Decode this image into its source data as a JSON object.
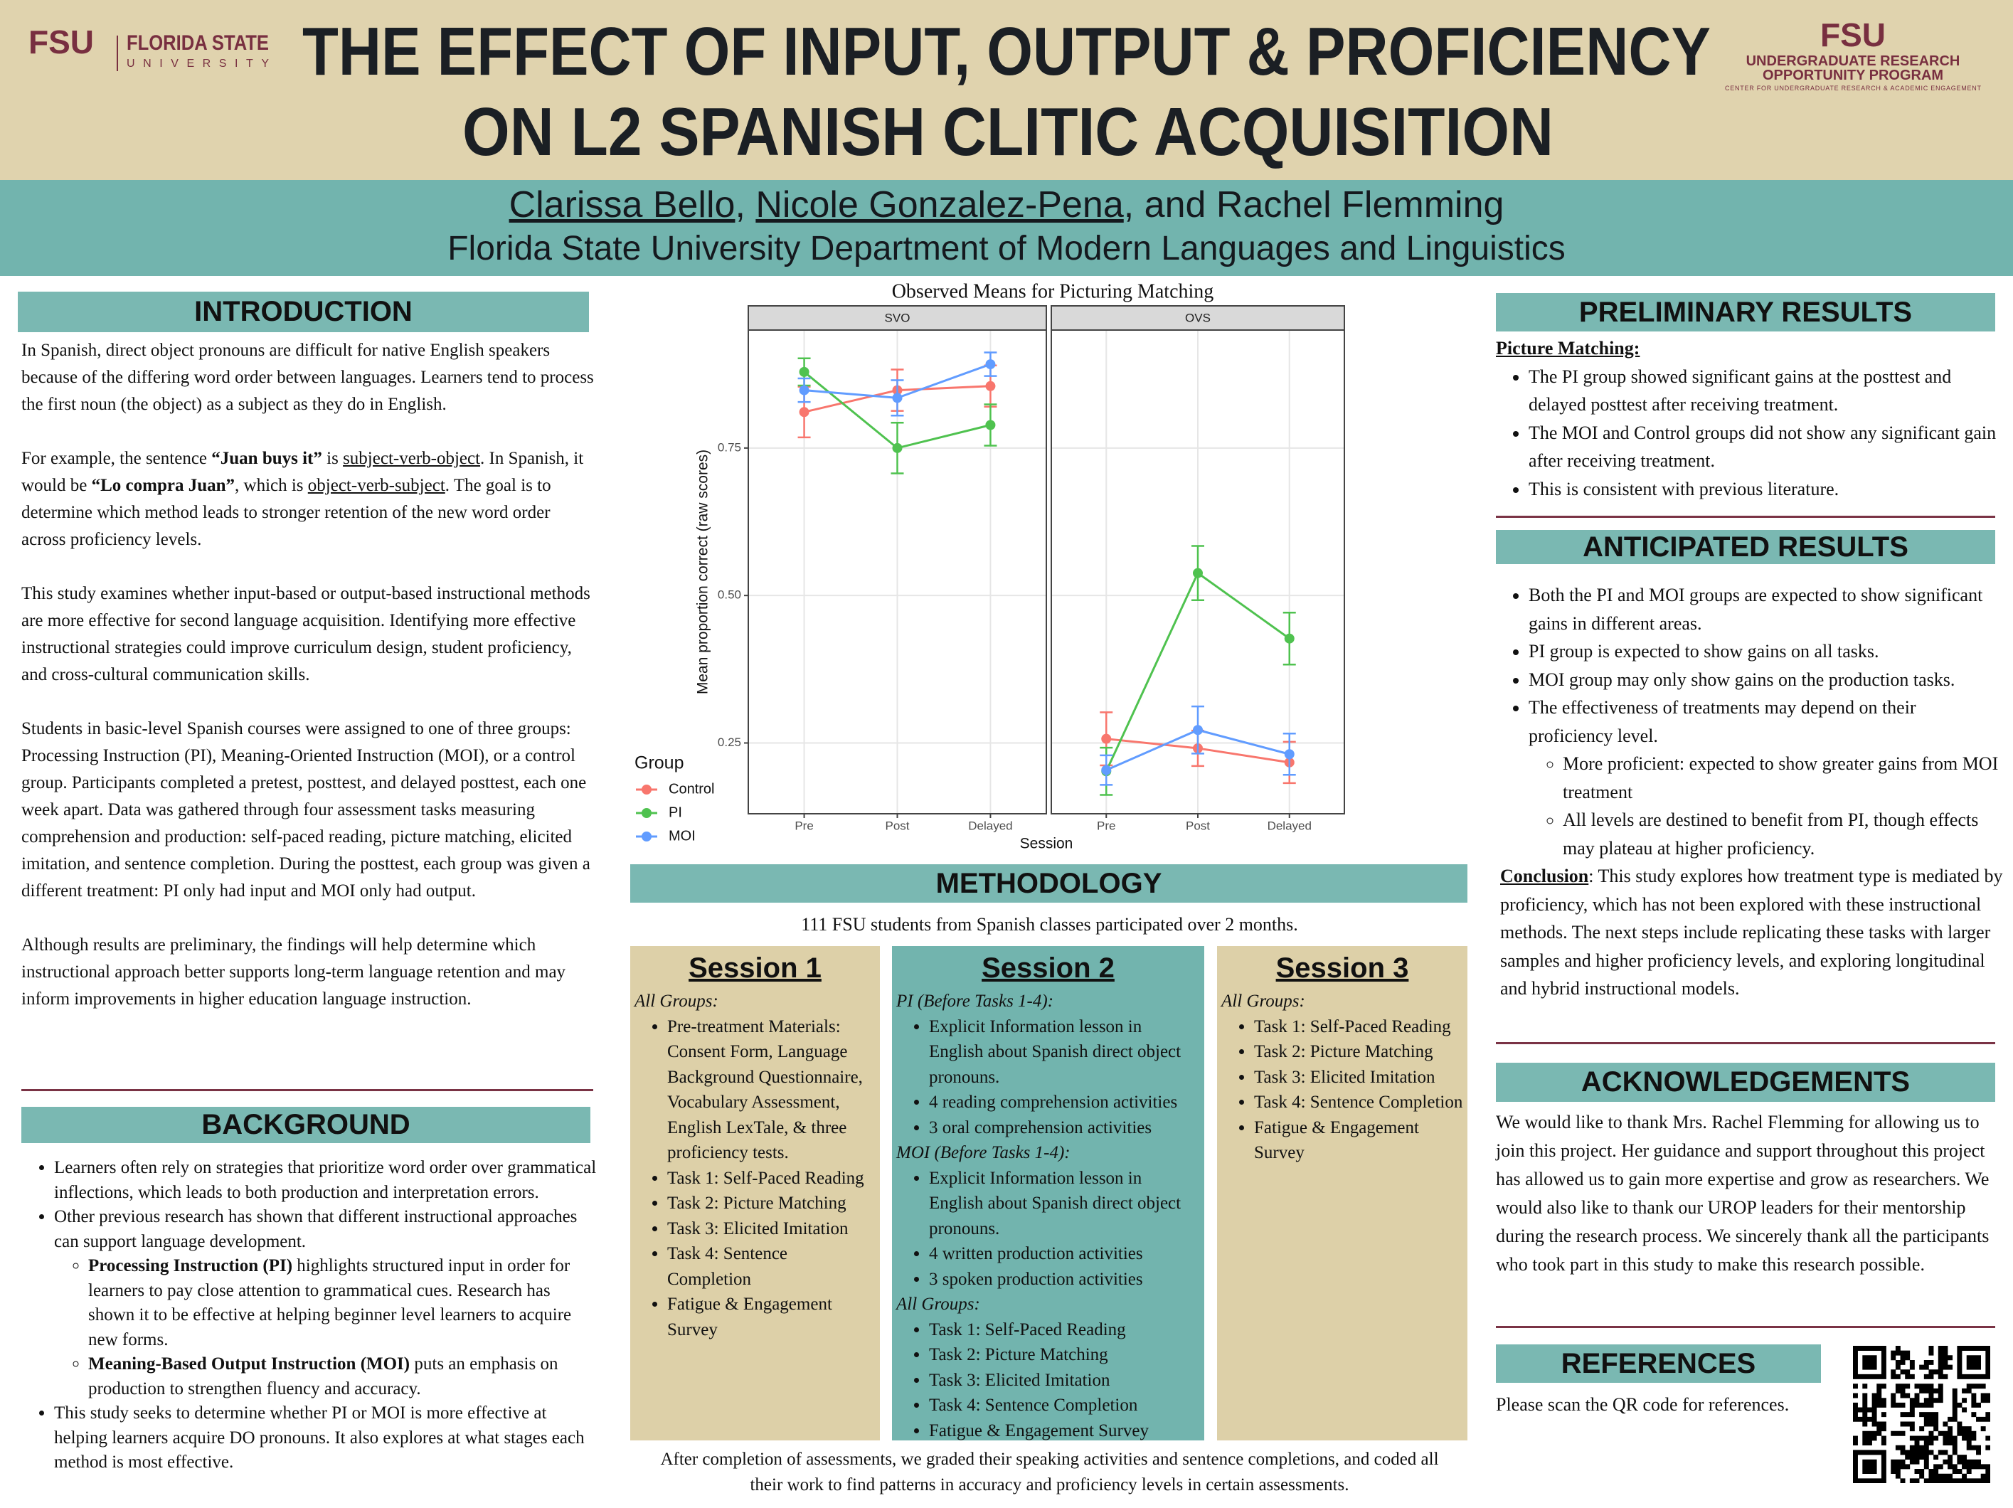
{
  "header": {
    "title_lines": [
      "THE EFFECT OF INPUT, OUTPUT & PROFICIENCY",
      "ON L2 SPANISH CLITIC ACQUISITION"
    ],
    "fsu_logo": "FSU",
    "fsu_name": "FLORIDA STATE",
    "fsu_sub": "UNIVERSITY",
    "urop_logo": "FSU",
    "urop_name_1": "UNDERGRADUATE RESEARCH",
    "urop_name_2": "OPPORTUNITY PROGRAM",
    "urop_sub": "CENTER FOR UNDERGRADUATE RESEARCH & ACADEMIC ENGAGEMENT"
  },
  "authors": {
    "author_1": "Clarissa Bello",
    "separator": ", ",
    "author_2": "Nicole Gonzalez-Pena",
    "rest": ", and Rachel Flemming",
    "affiliation": "Florida State University Department of Modern Languages and Linguistics"
  },
  "introduction": {
    "heading": "INTRODUCTION",
    "paragraph_1": "In Spanish, direct object pronouns are  difficult for native English speakers because of the differing word order between languages. Learners tend to process the first noun (the object) as a subject as they do in English.",
    "paragraph_2": [
      "For example, the sentence ",
      "“Juan buys it”",
      " is ",
      "subject-verb-object",
      ". In Spanish, it would be ",
      "“Lo compra Juan”",
      ", which is ",
      "object-verb-subject",
      ". The goal is to determine which method leads to stronger retention of the new word order across proficiency levels."
    ],
    "paragraph_3": "This study examines whether input-based or output-based instructional methods are more effective for second language acquisition. Identifying more effective instructional strategies could improve curriculum design, student proficiency, and cross-cultural communication skills.",
    "paragraph_4": "Students in basic-level Spanish courses were assigned to one of three groups: Processing Instruction (PI), Meaning-Oriented Instruction (MOI), or a control group. Participants completed a pretest, posttest, and delayed posttest, each one week apart. Data was gathered through four assessment tasks measuring comprehension and production: self-paced reading, picture matching, elicited imitation, and sentence completion. During the posttest, each group was given a different treatment: PI only had input and MOI only had output.",
    "paragraph_5": "Although results are preliminary, the findings will help determine which instructional approach better supports long-term language retention and may inform improvements in higher education language instruction."
  },
  "background": {
    "heading": "BACKGROUND",
    "items": [
      "Learners often rely on strategies that prioritize word order over grammatical inflections, which leads to both production and interpretation errors.",
      "Other previous research has shown that different instructional approaches can support language development.",
      "This study seeks to determine whether PI or MOI is more effective at helping learners acquire DO pronouns. It also explores at what stages each method is most effective."
    ],
    "subitems": [
      {
        "term": "Processing Instruction (PI)",
        "text": " highlights structured input in order for learners to pay close attention to grammatical cues. Research has shown it to be effective at helping beginner level learners to acquire new forms."
      },
      {
        "term": "Meaning-Based Output Instruction (MOI)",
        "text": " puts an emphasis on production to strengthen fluency and accuracy."
      }
    ]
  },
  "chart_data": {
    "type": "line",
    "title": "Observed Means for Picturing Matching",
    "x_label": "Session",
    "y_label": "Mean proportion correct (raw scores)",
    "legend_title": "Group",
    "categories": [
      "Pre",
      "Post",
      "Delayed"
    ],
    "series": [
      {
        "name": "Control",
        "color": "#F8766D"
      },
      {
        "name": "PI",
        "color": "#4FC24F"
      },
      {
        "name": "MOI",
        "color": "#619CFF"
      }
    ],
    "panels": [
      {
        "title": "SVO",
        "values": [
          [
            0.811,
            0.848,
            0.855
          ],
          [
            0.879,
            0.75,
            0.789
          ],
          [
            0.848,
            0.835,
            0.892
          ]
        ],
        "errors": [
          [
            0.043,
            0.035,
            0.035
          ],
          [
            0.023,
            0.043,
            0.035
          ],
          [
            0.02,
            0.03,
            0.02
          ]
        ]
      },
      {
        "title": "OVS",
        "values": [
          [
            0.257,
            0.241,
            0.217
          ],
          [
            0.202,
            0.538,
            0.427
          ],
          [
            0.204,
            0.272,
            0.231
          ]
        ],
        "errors": [
          [
            0.045,
            0.03,
            0.035
          ],
          [
            0.04,
            0.046,
            0.044
          ],
          [
            0.025,
            0.04,
            0.035
          ]
        ]
      }
    ],
    "ylim": [
      0.13,
      0.95
    ],
    "yticks": [
      0.25,
      {
        "value": 0.5,
        "label": "0.50"
      },
      0.75
    ],
    "grid": true
  },
  "methodology": {
    "heading": "METHODOLOGY",
    "intro": "111 FSU students from Spanish classes participated over 2 months.",
    "sessions": [
      {
        "title": "Session 1",
        "groups": [
          {
            "label": "All Groups:",
            "items": [
              "Pre-treatment Materials: Consent Form, Language Background Questionnaire, Vocabulary Assessment, English LexTale, & three proficiency tests.",
              "Task 1: Self-Paced Reading",
              "Task 2: Picture Matching",
              "Task 3: Elicited Imitation",
              "Task 4: Sentence Completion",
              "Fatigue & Engagement Survey"
            ]
          }
        ]
      },
      {
        "title": "Session 2",
        "groups": [
          {
            "label": "PI (Before Tasks 1-4):",
            "items": [
              "Explicit Information lesson in English about Spanish direct object pronouns.",
              "4 reading comprehension activities",
              "3 oral comprehension activities"
            ]
          },
          {
            "label": "MOI (Before Tasks 1-4):",
            "items": [
              "Explicit Information lesson in English about Spanish direct object pronouns.",
              "4 written production activities",
              "3 spoken production activities"
            ]
          },
          {
            "label": "All Groups:",
            "items": [
              "Task 1: Self-Paced Reading",
              "Task 2: Picture Matching",
              "Task 3: Elicited Imitation",
              "Task 4: Sentence Completion",
              "Fatigue & Engagement Survey"
            ]
          }
        ]
      },
      {
        "title": "Session 3",
        "groups": [
          {
            "label": "All Groups:",
            "items": [
              "Task 1: Self-Paced Reading",
              "Task 2: Picture Matching",
              "Task 3: Elicited Imitation",
              "Task 4: Sentence Completion",
              "Fatigue & Engagement Survey"
            ]
          }
        ]
      }
    ],
    "footer": "After completion of assessments, we graded their speaking activities and sentence completions, and coded all their work to find patterns in accuracy and proficiency levels in certain assessments."
  },
  "preliminary_results": {
    "heading": "PRELIMINARY RESULTS",
    "subheading": "Picture Matching:",
    "items": [
      "The PI group showed significant gains at the posttest and delayed posttest after receiving treatment.",
      "The MOI and Control groups did not show any significant gain after receiving treatment.",
      "This is consistent with previous literature."
    ]
  },
  "anticipated_results": {
    "heading": "ANTICIPATED RESULTS",
    "items": [
      "Both the PI and MOI groups are expected to show significant gains in different areas.",
      "PI group is expected to show gains on all tasks.",
      "MOI group may only show gains on the production tasks.",
      "The effectiveness of treatments may depend on their proficiency level."
    ],
    "subitems": [
      "More proficient: expected to show greater gains from MOI treatment",
      "All levels are destined to benefit from PI, though effects may plateau at higher proficiency."
    ],
    "conclusion_label": "Conclusion",
    "conclusion_text": ": This study explores how treatment type is mediated by proficiency, which has not been explored with these instructional methods. The next steps include replicating these tasks with larger samples and higher proficiency levels, and exploring longitudinal and hybrid instructional models."
  },
  "acknowledgements": {
    "heading": "ACKNOWLEDGEMENTS",
    "text": "We would like to thank Mrs. Rachel Flemming for allowing us to join this project. Her guidance and support throughout this project has allowed us to gain more expertise and grow as researchers. We would also like to thank our UROP leaders for their mentorship during the research process. We sincerely thank all the participants who took part in this study to make this research possible."
  },
  "references": {
    "heading": "REFERENCES",
    "text": "Please scan the QR code for references."
  }
}
